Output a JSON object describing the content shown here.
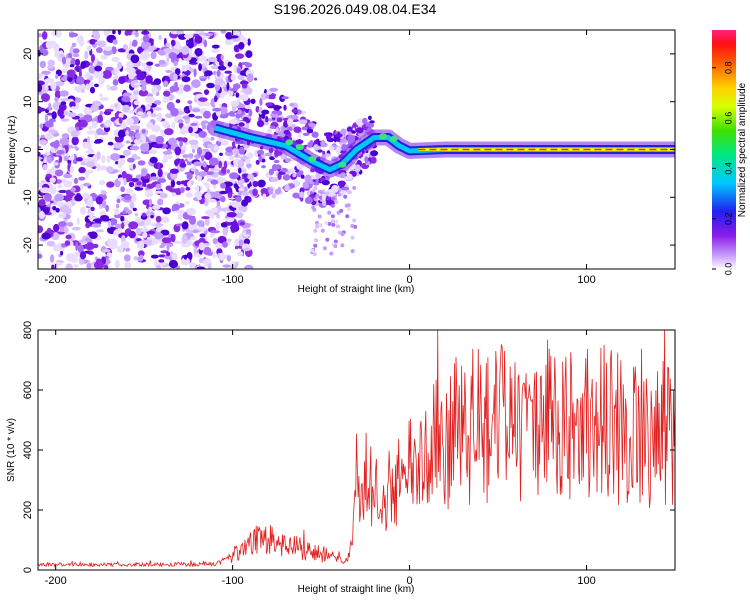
{
  "title": "S196.2026.049.08.04.E34",
  "chart_data": [
    {
      "type": "heatmap",
      "title": "S196.2026.049.08.04.E34",
      "xlabel": "Height of straight line (km)",
      "ylabel": "Frequency (Hz)",
      "xlim": [
        -210,
        150
      ],
      "ylim": [
        -25,
        25
      ],
      "x_ticks": [
        -200,
        -100,
        0,
        100
      ],
      "y_ticks": [
        20,
        10,
        0,
        -10,
        -20
      ],
      "colorbar": {
        "label": "Normalized spectral amplitude",
        "range": [
          0.0,
          0.95
        ],
        "ticks": [
          0.0,
          0.2,
          0.4,
          0.6,
          0.8
        ]
      },
      "ridge_frequency": {
        "x": [
          -110,
          -90,
          -70,
          -55,
          -45,
          -38,
          -30,
          -20,
          -12,
          -6,
          0,
          20,
          60,
          100,
          150
        ],
        "y": [
          4.5,
          2.5,
          0.8,
          -2.5,
          -4.2,
          -3.0,
          0.0,
          2.5,
          2.5,
          0.8,
          -0.3,
          0.0,
          0.0,
          0.0,
          0.0
        ]
      }
    },
    {
      "type": "line",
      "xlabel": "Height of straight line (km)",
      "ylabel": "SNR (10 * v/v)",
      "xlim": [
        -210,
        150
      ],
      "ylim": [
        0,
        800
      ],
      "x_ticks": [
        -200,
        -100,
        0,
        100
      ],
      "y_ticks": [
        0,
        200,
        400,
        600,
        800
      ],
      "line_color": "#e02020",
      "series": [
        {
          "name": "SNR",
          "x": [
            -210,
            -200,
            -150,
            -110,
            -100,
            -90,
            -80,
            -70,
            -60,
            -50,
            -40,
            -35,
            -30,
            -25,
            -20,
            -10,
            0,
            10,
            20,
            30,
            40,
            60,
            80,
            100,
            120,
            150
          ],
          "y": [
            18,
            18,
            18,
            20,
            45,
            90,
            105,
            80,
            70,
            55,
            35,
            30,
            250,
            300,
            250,
            260,
            330,
            380,
            440,
            470,
            480,
            490,
            490,
            500,
            470,
            450
          ]
        }
      ]
    }
  ]
}
